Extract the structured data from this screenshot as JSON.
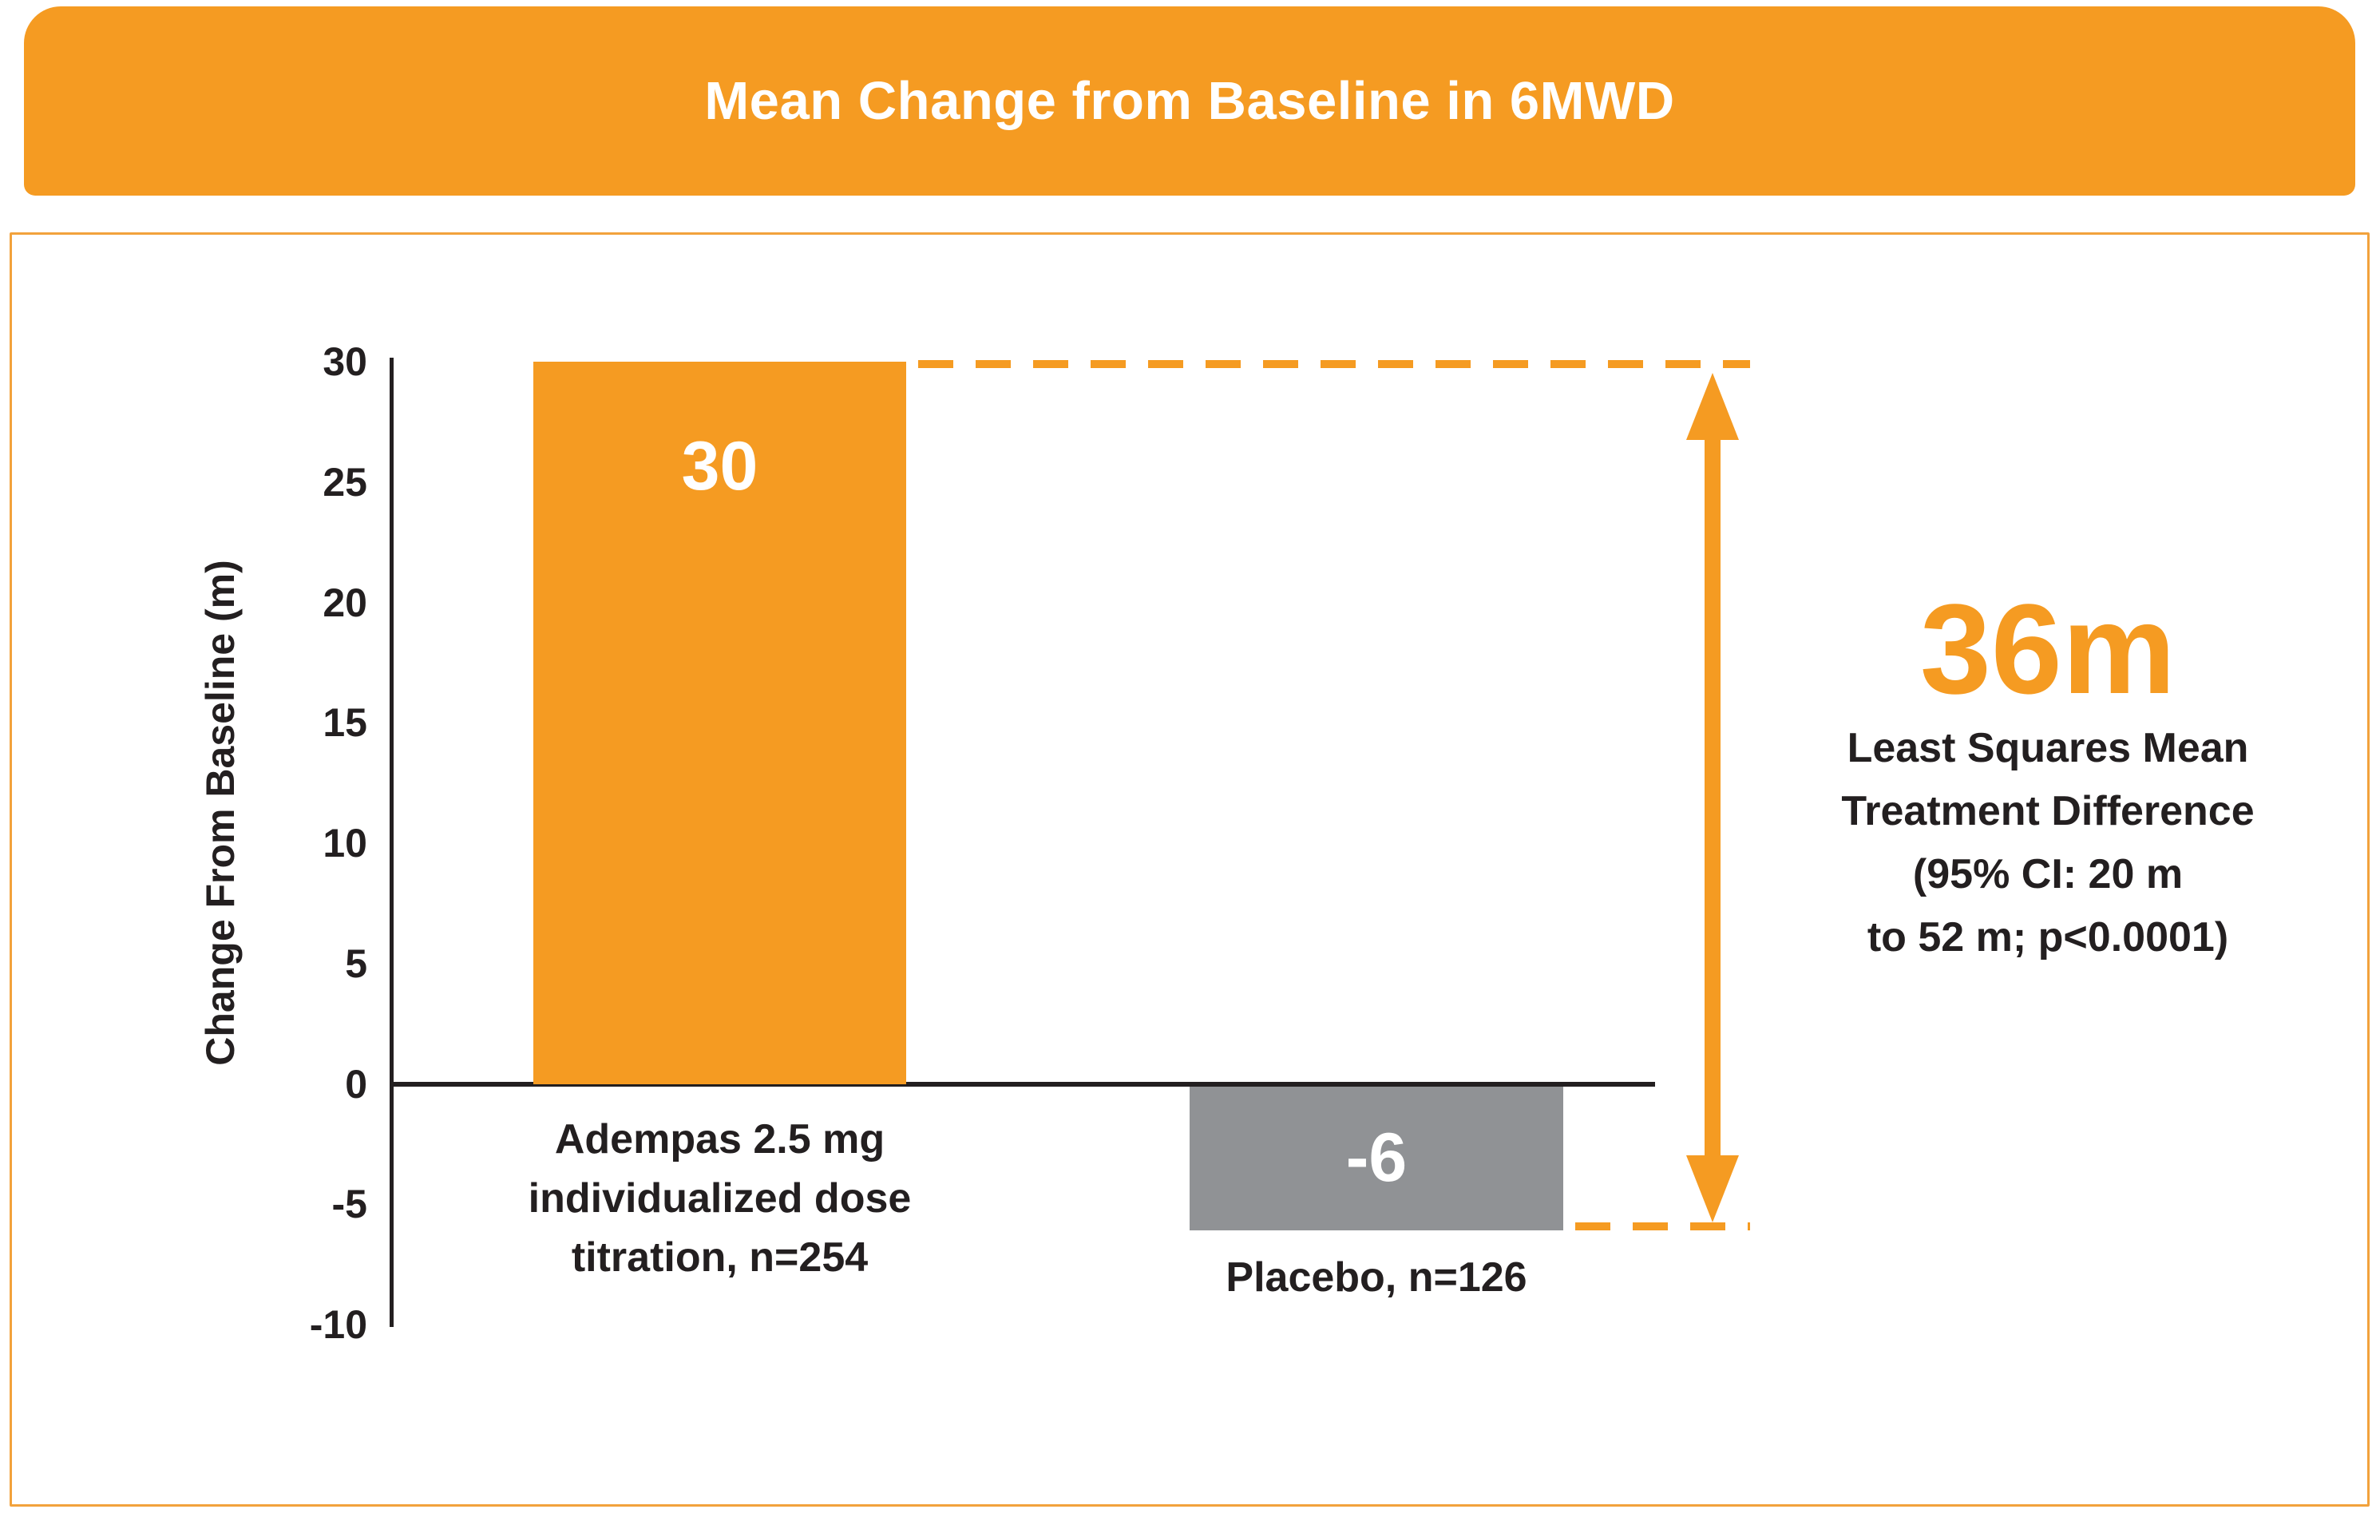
{
  "header": {
    "title": "Mean Change from Baseline in 6MWD"
  },
  "colors": {
    "accent_orange": "#F59B22",
    "bar_gray": "#909295",
    "panel_border": "#F2A23C",
    "text_dark": "#231F20",
    "bar_value_text": "#FFFFFF"
  },
  "chart_data": {
    "type": "bar",
    "title": "Mean Change from Baseline in 6MWD",
    "xlabel": "",
    "ylabel": "Change From Baseline (m)",
    "ylim": [
      -10,
      30
    ],
    "yticks": [
      30,
      25,
      20,
      15,
      10,
      5,
      0,
      -5,
      -10
    ],
    "grid": false,
    "legend": false,
    "categories": [
      "Adempas 2.5 mg individualized dose titration, n=254",
      "Placebo, n=126"
    ],
    "category_lines": [
      [
        "Adempas 2.5 mg",
        "individualized dose",
        "titration, n=254"
      ],
      [
        "Placebo, n=126"
      ]
    ],
    "values": [
      30,
      -6
    ],
    "bar_labels": [
      "30",
      "-6"
    ],
    "bar_colors": [
      "#F59B22",
      "#909295"
    ],
    "annotation": {
      "headline": "36m",
      "lines": [
        "Least Squares Mean",
        "Treatment Difference",
        "(95% CI: 20 m",
        "to 52 m; p<0.0001)"
      ]
    }
  }
}
